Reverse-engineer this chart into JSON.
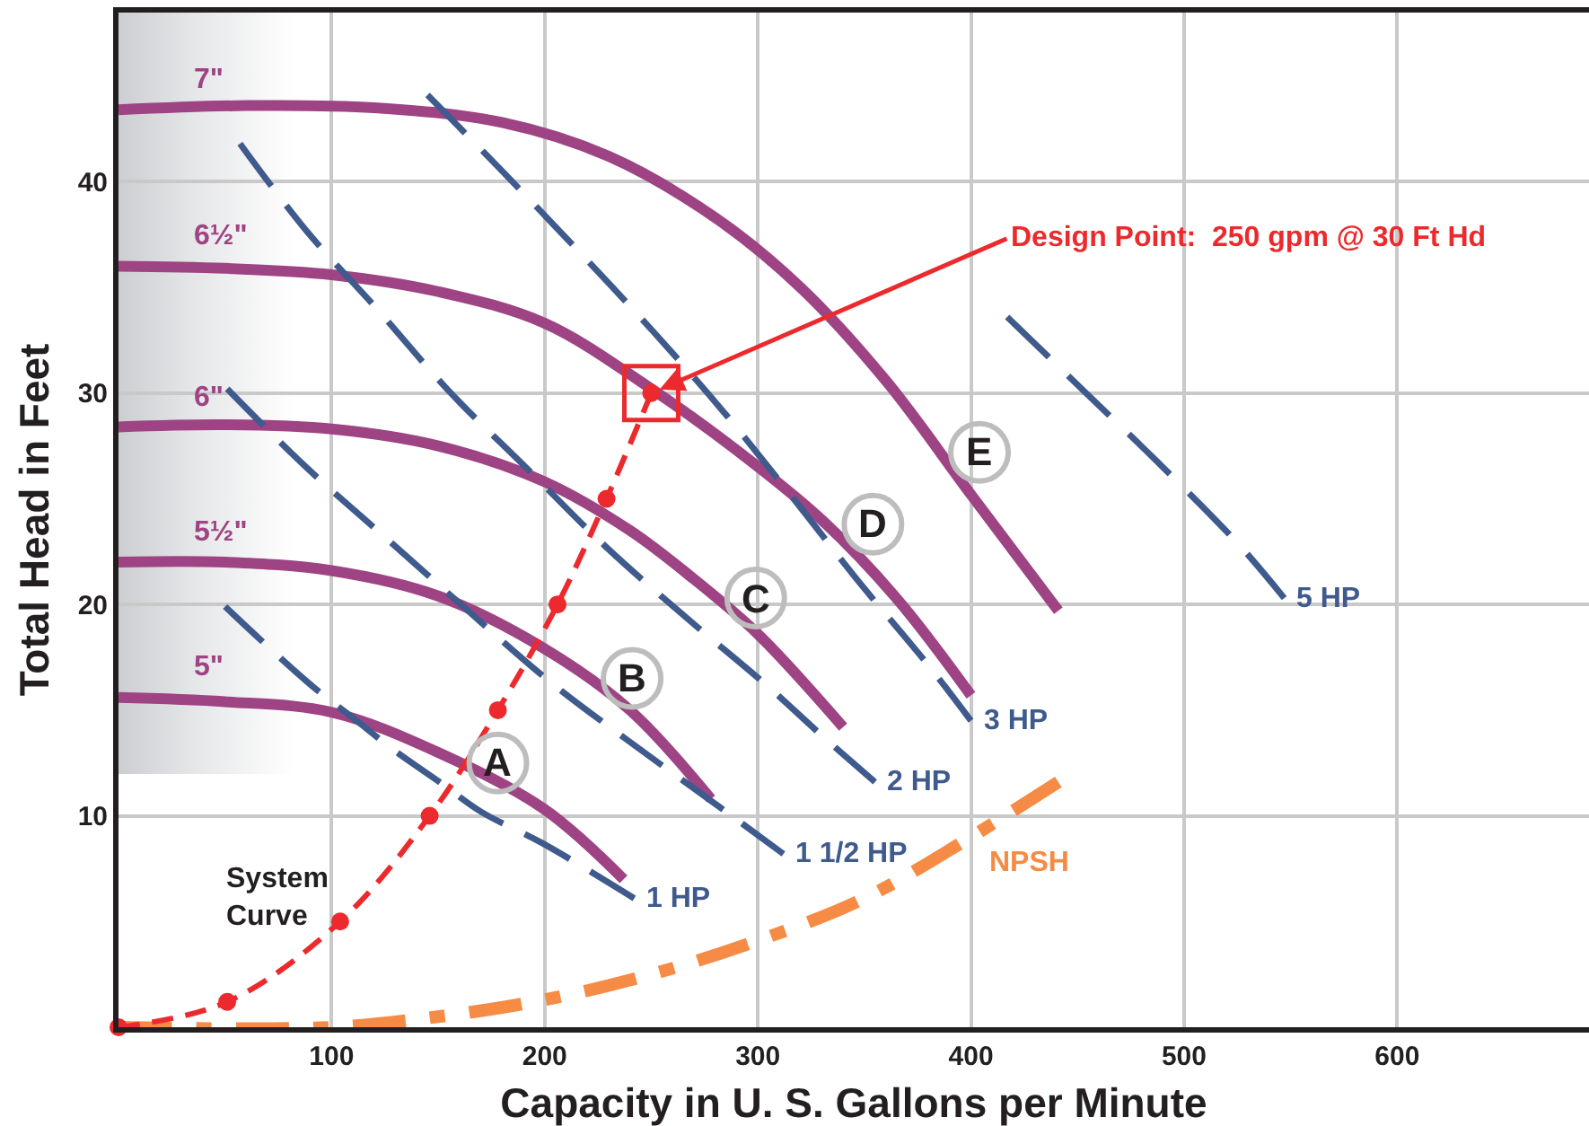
{
  "chart_data": {
    "type": "line",
    "xlabel": "Capacity in U. S. Gallons per Minute",
    "ylabel": "Total Head in Feet",
    "xlim": [
      0,
      690
    ],
    "ylim": [
      0,
      48
    ],
    "xticks": [
      100,
      200,
      300,
      400,
      500,
      600
    ],
    "yticks": [
      10,
      20,
      30,
      40
    ],
    "grid": true,
    "legend": false,
    "line_style": "solid",
    "marker": "none",
    "series": [
      {
        "name": "7\"",
        "color": "#9e4383",
        "x": [
          0,
          60,
          120,
          180,
          230,
          280,
          320,
          360,
          400,
          441
        ],
        "values": [
          43.4,
          43.6,
          43.5,
          42.8,
          41.2,
          38.3,
          35.0,
          30.6,
          25.2,
          19.7
        ]
      },
      {
        "name": "6½\"",
        "color": "#9e4383",
        "x": [
          0,
          50,
          100,
          150,
          200,
          250,
          290,
          330,
          365,
          400
        ],
        "values": [
          36.0,
          35.9,
          35.6,
          34.8,
          33.3,
          30.2,
          27.3,
          24.0,
          20.3,
          15.7
        ]
      },
      {
        "name": "6\"",
        "color": "#9e4383",
        "x": [
          0,
          50,
          100,
          150,
          200,
          240,
          270,
          300,
          340
        ],
        "values": [
          28.4,
          28.5,
          28.3,
          27.5,
          25.8,
          23.5,
          21.2,
          18.6,
          14.2
        ]
      },
      {
        "name": "5½\"",
        "color": "#9e4383",
        "x": [
          0,
          50,
          100,
          150,
          200,
          240,
          278
        ],
        "values": [
          22.0,
          22.0,
          21.6,
          20.4,
          17.9,
          15.0,
          10.8
        ]
      },
      {
        "name": "5\"",
        "color": "#9e4383",
        "x": [
          0,
          50,
          100,
          150,
          200,
          237
        ],
        "values": [
          15.6,
          15.4,
          14.9,
          13.0,
          10.3,
          7.0
        ]
      },
      {
        "name": "1 HP",
        "color": "#3f5a8c",
        "line_style": "dashed",
        "x": [
          50,
          89,
          113,
          128,
          152,
          170,
          199,
          242
        ],
        "values": [
          19.9,
          16.3,
          14.4,
          13.2,
          11.5,
          10.2,
          8.7,
          6.1
        ]
      },
      {
        "name": "1 1/2 HP",
        "color": "#3f5a8c",
        "line_style": "dashed",
        "x": [
          51,
          88,
          126,
          164,
          203,
          244,
          285,
          312
        ],
        "values": [
          30.2,
          26.5,
          23.1,
          19.7,
          16.3,
          13.2,
          10.2,
          8.2
        ]
      },
      {
        "name": "2 HP",
        "color": "#3f5a8c",
        "line_style": "dashed",
        "x": [
          57,
          88,
          122,
          155,
          192,
          229,
          265,
          305,
          330,
          355
        ],
        "values": [
          41.8,
          37.7,
          33.9,
          30.1,
          26.4,
          22.7,
          19.5,
          16.1,
          13.8,
          11.6
        ]
      },
      {
        "name": "3 HP",
        "color": "#3f5a8c",
        "line_style": "dashed",
        "x": [
          145,
          181,
          216,
          251,
          284,
          316,
          348,
          381,
          400
        ],
        "values": [
          44.1,
          40.4,
          36.7,
          32.9,
          29.1,
          25.1,
          21.0,
          17.0,
          14.5
        ]
      },
      {
        "name": "5 HP",
        "color": "#3f5a8c",
        "line_style": "dashed",
        "x": [
          417,
          454,
          490,
          526,
          547
        ],
        "values": [
          33.6,
          30.0,
          26.5,
          22.8,
          20.3
        ]
      },
      {
        "name": "NPSH",
        "color": "#f58b45",
        "line_style": "dashdot",
        "x": [
          0,
          100,
          150,
          200,
          250,
          300,
          350,
          400,
          441
        ],
        "values": [
          0,
          0,
          0.5,
          1.3,
          2.5,
          4.1,
          6.1,
          9.0,
          11.6
        ]
      },
      {
        "name": "System Curve",
        "color": "#ec2a2d",
        "line_style": "dashed",
        "marker": "circle",
        "x": [
          0,
          51,
          104,
          146,
          178,
          206,
          229,
          250
        ],
        "values": [
          0,
          1.2,
          5,
          10,
          15,
          20,
          25,
          30
        ]
      }
    ],
    "annotations": [
      {
        "text": "Design Point:  250 gpm @ 30 Ft Hd",
        "x": 250,
        "y": 30
      },
      {
        "text": "A",
        "x": 178,
        "y": 12.5
      },
      {
        "text": "B",
        "x": 241,
        "y": 16.5
      },
      {
        "text": "C",
        "x": 299,
        "y": 20.3
      },
      {
        "text": "D",
        "x": 354,
        "y": 23.8
      },
      {
        "text": "E",
        "x": 404,
        "y": 27.2
      }
    ]
  }
}
